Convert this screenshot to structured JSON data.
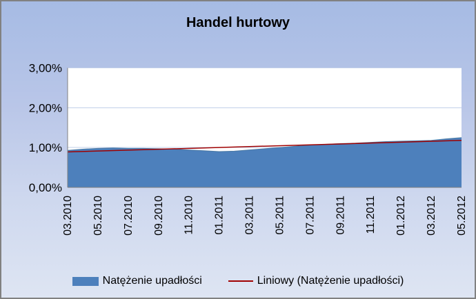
{
  "colors": {
    "background_top": "#A6BBE4",
    "background_bottom": "#DEE5F3",
    "frame_border": "#818181",
    "plot_fill": "#FFFFFF",
    "gridline": "#C2CFEA",
    "axis_line": "#808080",
    "area_fill": "#4D80BC",
    "area_edge": "#41719C",
    "trend_line": "#A00000"
  },
  "chart_data": {
    "type": "area",
    "title": "Handel hurtowy",
    "categories": [
      "03.2010",
      "04.2010",
      "05.2010",
      "06.2010",
      "07.2010",
      "08.2010",
      "09.2010",
      "10.2010",
      "11.2010",
      "12.2010",
      "01.2011",
      "02.2011",
      "03.2011",
      "04.2011",
      "05.2011",
      "06.2011",
      "07.2011",
      "08.2011",
      "09.2011",
      "10.2011",
      "11.2011",
      "12.2011",
      "01.2012",
      "02.2012",
      "03.2012",
      "04.2012",
      "05.2012"
    ],
    "x_tick_labels": [
      "03.2010",
      "05.2010",
      "07.2010",
      "09.2010",
      "11.2010",
      "01.2011",
      "03.2011",
      "05.2011",
      "07.2011",
      "09.2011",
      "11.2011",
      "01.2012",
      "03.2012",
      "05.2012"
    ],
    "x_tick_every": 2,
    "series": [
      {
        "name": "Natężenie upadłości",
        "type": "area",
        "values_percent": [
          0.93,
          0.96,
          0.98,
          0.99,
          0.98,
          0.98,
          0.97,
          0.96,
          0.94,
          0.92,
          0.9,
          0.91,
          0.94,
          0.97,
          1.0,
          1.03,
          1.06,
          1.08,
          1.1,
          1.11,
          1.13,
          1.15,
          1.16,
          1.17,
          1.18,
          1.22,
          1.25
        ]
      },
      {
        "name": "Liniowy (Natężenie upadłości)",
        "type": "linear-trend",
        "start_percent": 0.89,
        "end_percent": 1.18
      }
    ],
    "y_axis": {
      "min_percent": 0,
      "max_percent": 3,
      "tick_step_percent": 1,
      "ticks": [
        {
          "label": "0,00%",
          "value": 0
        },
        {
          "label": "1,00%",
          "value": 1
        },
        {
          "label": "2,00%",
          "value": 2
        },
        {
          "label": "3,00%",
          "value": 3
        }
      ]
    },
    "grid": true,
    "legend": {
      "position": "bottom",
      "entries": [
        "Natężenie upadłości",
        "Liniowy (Natężenie upadłości)"
      ]
    }
  }
}
